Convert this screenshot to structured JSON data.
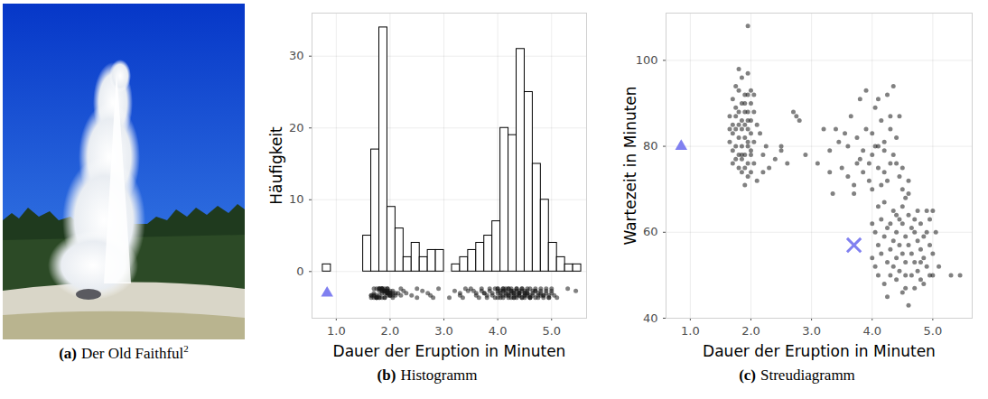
{
  "photo": {
    "caption_label": "(a)",
    "caption": "Der Old Faithful",
    "footnote": "2"
  },
  "chart_data": [
    {
      "type": "histogram",
      "caption_label": "(b)",
      "caption": "Histogramm",
      "x_label": "Dauer der Eruption in Minuten",
      "y_label": "Häufigkeit",
      "bins": [
        0.75,
        0.9,
        1.05,
        1.2,
        1.35,
        1.5,
        1.65,
        1.8,
        1.95,
        2.1,
        2.25,
        2.4,
        2.55,
        2.7,
        2.85,
        3.0,
        3.15,
        3.3,
        3.45,
        3.6,
        3.75,
        3.9,
        4.05,
        4.2,
        4.35,
        4.5,
        4.65,
        4.8,
        4.95,
        5.1,
        5.25,
        5.4,
        5.55
      ],
      "counts": [
        1,
        0,
        0,
        0,
        0,
        5,
        17,
        34,
        9,
        6,
        2,
        4,
        2,
        3,
        3,
        0,
        1,
        2,
        3,
        4,
        5,
        7,
        20,
        19,
        31,
        25,
        15,
        10,
        4,
        2,
        1,
        1
      ],
      "color": "#ffffff",
      "xlim": [
        0.55,
        5.65
      ],
      "ylim": [
        -6.5,
        36
      ],
      "xticks": [
        1,
        2,
        3,
        4,
        5
      ],
      "yticks": [
        0,
        10,
        20,
        30
      ],
      "grid": true,
      "strip_y": -3,
      "highlights": [
        {
          "x": 0.83,
          "y": -3,
          "marker": "triangle",
          "color": "#8080f0"
        }
      ]
    },
    {
      "type": "scatter",
      "caption_label": "(c)",
      "caption": "Streudiagramm",
      "x_label": "Dauer der Eruption in Minuten",
      "y_label": "Wartezeit in Minuten",
      "x": [
        1.95,
        1.8,
        1.85,
        1.95,
        1.75,
        1.8,
        1.9,
        1.95,
        2.0,
        2.05,
        1.7,
        1.85,
        1.9,
        2.0,
        1.75,
        1.8,
        1.9,
        1.95,
        2.05,
        1.65,
        1.75,
        1.85,
        1.95,
        2.0,
        1.7,
        1.8,
        1.9,
        2.1,
        1.65,
        1.75,
        1.85,
        1.95,
        2.0,
        1.7,
        1.8,
        1.9,
        1.95,
        2.05,
        1.65,
        1.75,
        1.85,
        1.95,
        2.0,
        1.7,
        1.8,
        1.85,
        1.9,
        2.0,
        1.75,
        1.85,
        1.95,
        2.05,
        1.7,
        1.8,
        1.9,
        1.85,
        2.0,
        1.95,
        2.1,
        1.9,
        2.2,
        2.25,
        2.3,
        2.4,
        2.5,
        2.5,
        2.6,
        2.7,
        2.75,
        2.8,
        2.9,
        3.2,
        3.3,
        3.3,
        3.35,
        3.4,
        3.45,
        2.15,
        2.2,
        3.1,
        3.5,
        3.55,
        3.6,
        3.6,
        3.65,
        3.7,
        3.7,
        3.75,
        3.8,
        3.8,
        3.85,
        3.85,
        3.9,
        3.9,
        3.95,
        3.95,
        4.0,
        4.0,
        4.05,
        4.05,
        4.1,
        4.1,
        4.15,
        4.15,
        4.2,
        4.2,
        4.25,
        4.25,
        4.3,
        4.3,
        4.35,
        4.35,
        4.4,
        4.4,
        4.45,
        4.45,
        4.5,
        4.5,
        4.55,
        4.6,
        4.0,
        4.1,
        3.75,
        4.2,
        4.3,
        4.0,
        4.05,
        4.05,
        4.1,
        4.1,
        4.15,
        4.15,
        4.2,
        4.2,
        4.25,
        4.25,
        4.3,
        4.3,
        4.35,
        4.35,
        4.35,
        4.4,
        4.4,
        4.4,
        4.45,
        4.45,
        4.45,
        4.5,
        4.5,
        4.5,
        4.55,
        4.55,
        4.55,
        4.6,
        4.6,
        4.6,
        4.65,
        4.65,
        4.65,
        4.7,
        4.7,
        4.7,
        4.75,
        4.75,
        4.75,
        4.8,
        4.8,
        4.8,
        4.85,
        4.85,
        4.9,
        4.9,
        4.9,
        4.95,
        4.95,
        5.0,
        5.0,
        5.0,
        5.05,
        5.1,
        5.3,
        5.45,
        4.3,
        4.5,
        4.6,
        4.2,
        4.25,
        4.55,
        4.85,
        4.0,
        4.1,
        4.7,
        4.4,
        4.8,
        4.95
      ],
      "y": [
        108,
        98,
        96,
        97,
        94,
        93,
        92,
        92,
        93,
        92,
        91,
        90,
        90,
        90,
        89,
        88,
        88,
        88,
        88,
        87,
        87,
        86,
        86,
        86,
        85,
        85,
        85,
        85,
        84,
        84,
        84,
        84,
        83,
        83,
        82,
        82,
        81,
        81,
        81,
        80,
        80,
        80,
        79,
        79,
        78,
        78,
        78,
        78,
        77,
        77,
        76,
        76,
        76,
        75,
        75,
        74,
        74,
        73,
        72,
        71,
        78,
        80,
        75,
        77,
        79,
        80,
        76,
        88,
        87,
        86,
        78,
        84,
        79,
        74,
        69,
        84,
        81,
        83,
        74,
        76,
        75,
        83,
        80,
        73,
        87,
        71,
        69,
        82,
        77,
        91,
        79,
        74,
        93,
        84,
        76,
        72,
        83,
        78,
        89,
        80,
        80,
        75,
        71,
        86,
        79,
        81,
        92,
        72,
        87,
        84,
        94,
        78,
        76,
        82,
        73,
        87,
        75,
        70,
        68,
        72,
        70,
        91,
        76,
        74,
        76,
        54,
        52,
        60,
        57,
        50,
        63,
        55,
        59,
        48,
        53,
        61,
        56,
        50,
        65,
        58,
        52,
        60,
        54,
        49,
        63,
        57,
        51,
        62,
        55,
        46,
        59,
        53,
        50,
        64,
        57,
        43,
        61,
        55,
        50,
        60,
        53,
        47,
        65,
        58,
        51,
        62,
        56,
        49,
        59,
        54,
        65,
        60,
        52,
        63,
        57,
        65,
        55,
        50,
        60,
        52,
        50,
        50,
        62,
        66,
        69,
        67,
        45,
        47,
        48,
        62,
        66,
        63,
        64,
        53,
        50
      ],
      "color": "#1a1a1a",
      "marker": "circle",
      "xlim": [
        0.6,
        5.65
      ],
      "ylim": [
        40,
        111
      ],
      "xticks": [
        1,
        2,
        3,
        4,
        5
      ],
      "yticks": [
        40,
        60,
        80,
        100
      ],
      "grid": true,
      "highlights": [
        {
          "x": 0.85,
          "y": 80,
          "marker": "triangle",
          "color": "#8080f0"
        },
        {
          "x": 3.7,
          "y": 57,
          "marker": "cross",
          "color": "#8080f0"
        }
      ]
    }
  ]
}
